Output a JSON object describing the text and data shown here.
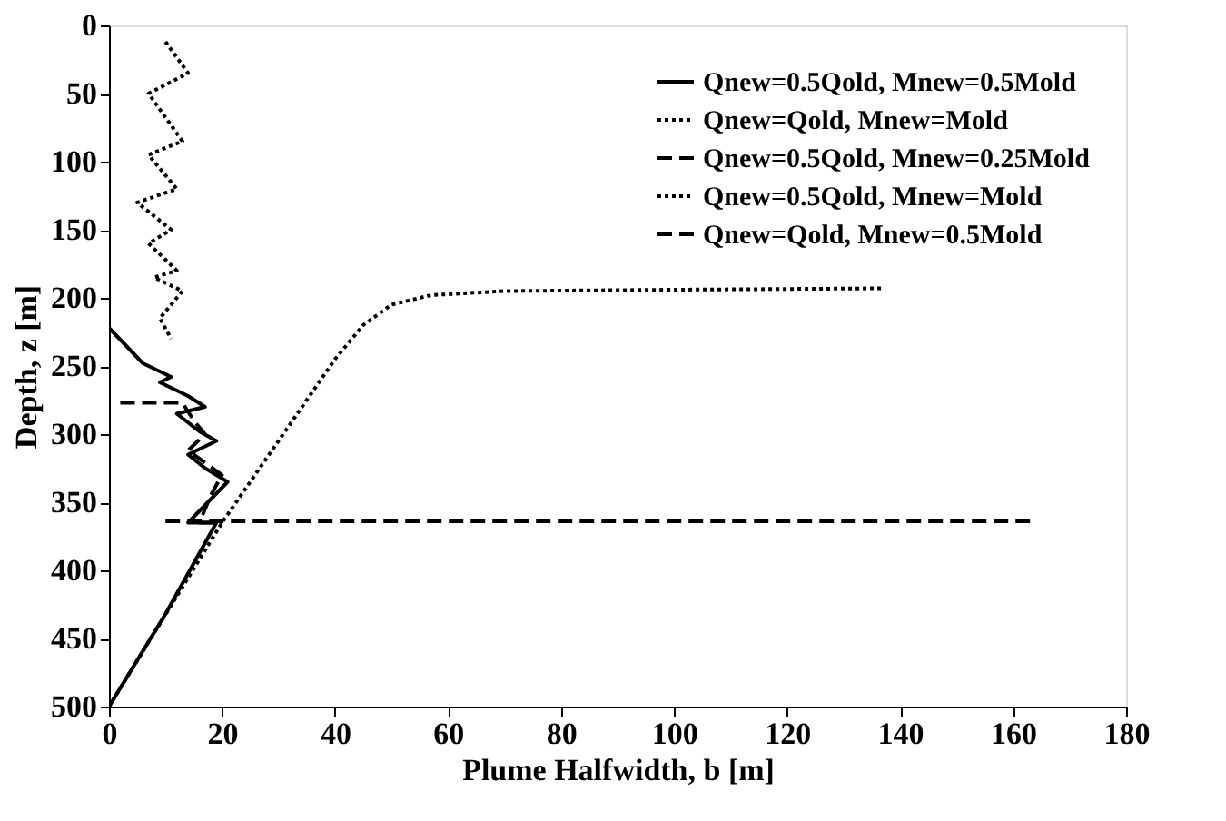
{
  "chart_data": {
    "type": "line",
    "xlabel": "Plume Halfwidth, b [m]",
    "ylabel": "Depth, z [m]",
    "xlim": [
      0,
      180
    ],
    "xticks": [
      0,
      20,
      40,
      60,
      80,
      100,
      120,
      140,
      160,
      180
    ],
    "ylim": [
      500,
      0
    ],
    "yticks": [
      0,
      50,
      100,
      150,
      200,
      250,
      300,
      350,
      400,
      450,
      500
    ],
    "grid": false,
    "legend": "top right",
    "marker": "none",
    "series": [
      {
        "name": "Qnew=0.5Qold, Mnew=0.5Mold",
        "color": "#000000",
        "line_style": "solid",
        "x": [
          0,
          10,
          19,
          14,
          21,
          17,
          14,
          19,
          16,
          12,
          17,
          14,
          9,
          11,
          6,
          3,
          0
        ],
        "values": [
          500,
          432,
          365,
          365,
          335,
          325,
          315,
          305,
          298,
          285,
          280,
          272,
          262,
          258,
          248,
          235,
          222
        ]
      },
      {
        "name": "Qnew=Qold, Mnew=Mold",
        "color": "#000000",
        "line_style": "dotted",
        "x": [
          0,
          20,
          30,
          40,
          45,
          50,
          57,
          70,
          100,
          137
        ],
        "values": [
          500,
          365,
          305,
          245,
          220,
          205,
          198,
          195,
          194,
          193
        ]
      },
      {
        "name": "Qnew=0.5Qold, Mnew=0.25Mold",
        "color": "#000000",
        "line_style": "dashed",
        "x": [
          2,
          13,
          15,
          17,
          14,
          20,
          18,
          16,
          20
        ],
        "values": [
          277,
          277,
          290,
          300,
          312,
          330,
          345,
          365,
          365
        ]
      },
      {
        "name": "Qnew=0.5Qold, Mnew=Mold",
        "color": "#000000",
        "line_style": "dotted",
        "x": [
          10,
          14,
          7,
          13,
          7,
          12,
          5,
          11,
          7,
          12,
          8,
          13,
          9,
          11
        ],
        "values": [
          12,
          35,
          50,
          85,
          95,
          120,
          130,
          150,
          160,
          180,
          185,
          195,
          215,
          230
        ]
      },
      {
        "name": "Qnew=Qold, Mnew=0.5Mold",
        "color": "#000000",
        "line_style": "dashed",
        "x": [
          10,
          60,
          110,
          163
        ],
        "values": [
          364,
          364,
          364,
          364
        ]
      }
    ]
  }
}
